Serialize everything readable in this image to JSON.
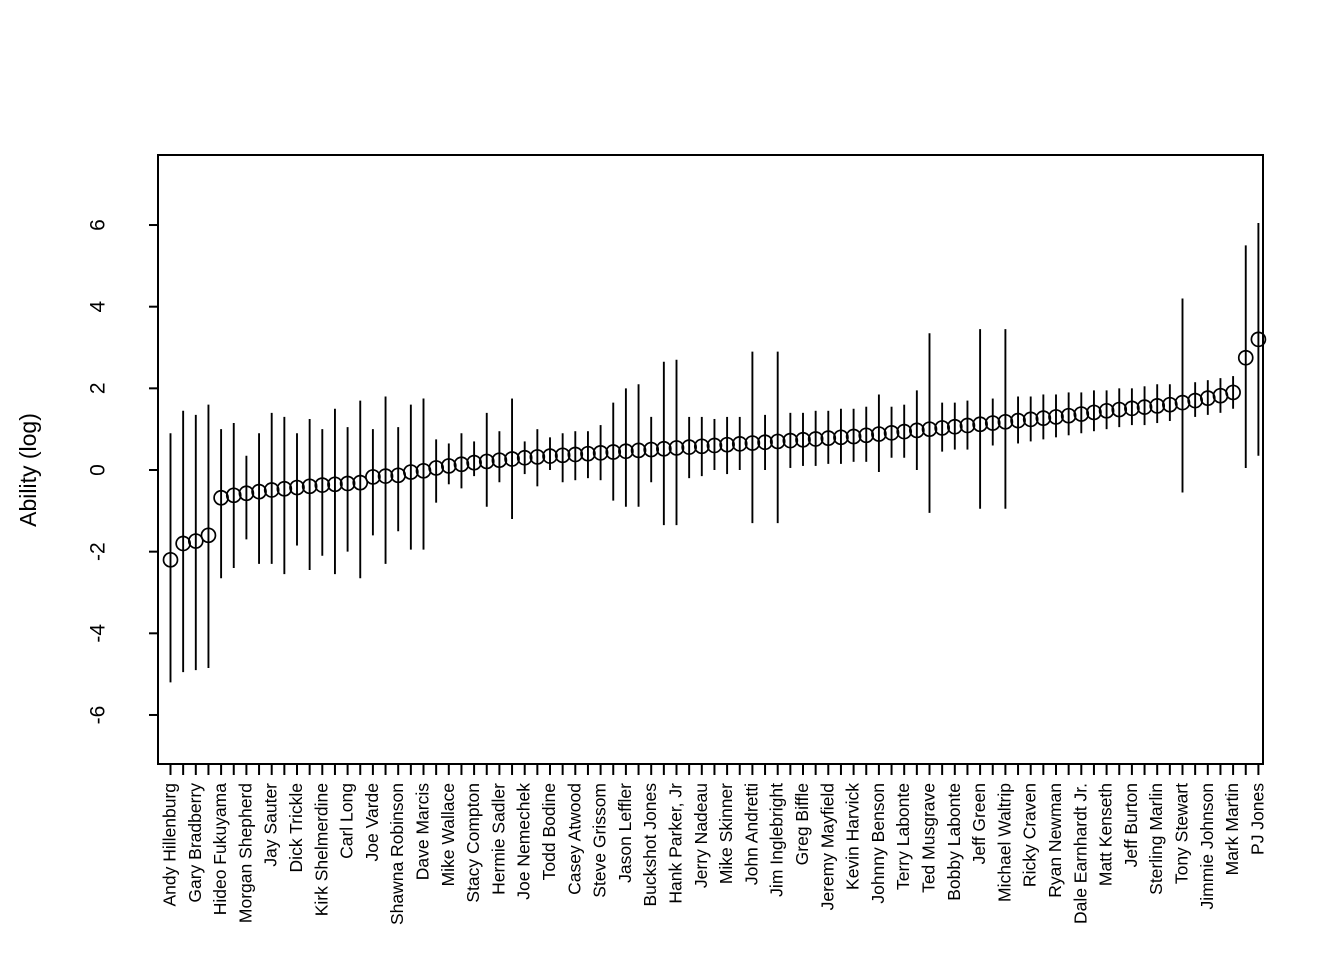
{
  "chart_data": {
    "type": "scatter",
    "title": "",
    "xlabel": "",
    "ylabel": "Ability (log)",
    "ylim": [
      -7.2,
      7.7
    ],
    "grid": false,
    "legend": null,
    "marker": "open-circle",
    "error_bars": "vertical-line-no-caps",
    "colors": {
      "foreground": "#000000",
      "background": "#ffffff"
    },
    "y_ticks": {
      "values": [
        6,
        4,
        2,
        0,
        -2,
        -4,
        -6
      ],
      "labels": [
        "6",
        "4",
        "2",
        "0",
        "-2",
        "-4",
        "-6"
      ],
      "rotated": true
    },
    "x_labels_note": "87 ticks; every other tick (odd positions) carries a driver name label, rotated 90 degrees",
    "categories": [
      "Andy Hillenburg",
      "Gary Bradberry",
      "Hideo Fukuyama",
      "Morgan Shepherd",
      "Jay Sauter",
      "Dick Trickle",
      "Kirk Shelmerdine",
      "Carl Long",
      "Joe Varde",
      "Shawna Robinson",
      "Dave Marcis",
      "Mike Wallace",
      "Stacy Compton",
      "Hermie Sadler",
      "Joe Nemechek",
      "Todd Bodine",
      "Casey Atwood",
      "Steve Grissom",
      "Jason Leffler",
      "Buckshot Jones",
      "Hank Parker, Jr",
      "Jerry Nadeau",
      "Mike Skinner",
      "John Andretti",
      "Jim Inglebright",
      "Greg Biffle",
      "Jeremy Mayfield",
      "Kevin Harvick",
      "Johnny Benson",
      "Terry Labonte",
      "Ted Musgrave",
      "Bobby Labonte",
      "Jeff Green",
      "Michael Waltrip",
      "Ricky Craven",
      "Ryan Newman",
      "Dale Earnhardt Jr.",
      "Matt Kenseth",
      "Jeff Burton",
      "Sterling Marlin",
      "Tony Stewart",
      "Jimmie Johnson",
      "Mark Martin",
      "PJ Jones"
    ],
    "points": [
      {
        "label": "Andy Hillenburg",
        "est": -2.2,
        "lo": -5.2,
        "hi": 0.9
      },
      {
        "label": "",
        "est": -1.8,
        "lo": -4.95,
        "hi": 1.45
      },
      {
        "label": "Gary Bradberry",
        "est": -1.74,
        "lo": -4.9,
        "hi": 1.35
      },
      {
        "label": "",
        "est": -1.6,
        "lo": -4.85,
        "hi": 1.6
      },
      {
        "label": "Hideo Fukuyama",
        "est": -0.68,
        "lo": -2.65,
        "hi": 1.0
      },
      {
        "label": "",
        "est": -0.62,
        "lo": -2.4,
        "hi": 1.15
      },
      {
        "label": "Morgan Shepherd",
        "est": -0.57,
        "lo": -1.7,
        "hi": 0.35
      },
      {
        "label": "",
        "est": -0.53,
        "lo": -2.3,
        "hi": 0.9
      },
      {
        "label": "Jay Sauter",
        "est": -0.49,
        "lo": -2.3,
        "hi": 1.4
      },
      {
        "label": "",
        "est": -0.46,
        "lo": -2.55,
        "hi": 1.3
      },
      {
        "label": "Dick Trickle",
        "est": -0.43,
        "lo": -1.85,
        "hi": 0.9
      },
      {
        "label": "",
        "est": -0.4,
        "lo": -2.45,
        "hi": 1.25
      },
      {
        "label": "Kirk Shelmerdine",
        "est": -0.37,
        "lo": -2.1,
        "hi": 1.0
      },
      {
        "label": "",
        "est": -0.35,
        "lo": -2.55,
        "hi": 1.5
      },
      {
        "label": "Carl Long",
        "est": -0.33,
        "lo": -2.0,
        "hi": 1.05
      },
      {
        "label": "",
        "est": -0.31,
        "lo": -2.65,
        "hi": 1.7
      },
      {
        "label": "Joe Varde",
        "est": -0.17,
        "lo": -1.6,
        "hi": 1.0
      },
      {
        "label": "",
        "est": -0.15,
        "lo": -2.3,
        "hi": 1.8
      },
      {
        "label": "Shawna Robinson",
        "est": -0.13,
        "lo": -1.5,
        "hi": 1.05
      },
      {
        "label": "",
        "est": -0.05,
        "lo": -1.95,
        "hi": 1.6
      },
      {
        "label": "Dave Marcis",
        "est": -0.02,
        "lo": -1.95,
        "hi": 1.75
      },
      {
        "label": "",
        "est": 0.05,
        "lo": -0.8,
        "hi": 0.75
      },
      {
        "label": "Mike Wallace",
        "est": 0.1,
        "lo": -0.35,
        "hi": 0.65
      },
      {
        "label": "",
        "est": 0.14,
        "lo": -0.45,
        "hi": 0.9
      },
      {
        "label": "Stacy Compton",
        "est": 0.18,
        "lo": -0.15,
        "hi": 0.7
      },
      {
        "label": "",
        "est": 0.21,
        "lo": -0.9,
        "hi": 1.4
      },
      {
        "label": "Hermie Sadler",
        "est": 0.24,
        "lo": -0.3,
        "hi": 0.95
      },
      {
        "label": "",
        "est": 0.27,
        "lo": -1.2,
        "hi": 1.75
      },
      {
        "label": "Joe Nemechek",
        "est": 0.3,
        "lo": -0.1,
        "hi": 0.7
      },
      {
        "label": "",
        "est": 0.32,
        "lo": -0.4,
        "hi": 1.0
      },
      {
        "label": "Todd Bodine",
        "est": 0.34,
        "lo": 0.0,
        "hi": 0.8
      },
      {
        "label": "",
        "est": 0.36,
        "lo": -0.3,
        "hi": 0.9
      },
      {
        "label": "Casey Atwood",
        "est": 0.38,
        "lo": -0.25,
        "hi": 0.95
      },
      {
        "label": "",
        "est": 0.4,
        "lo": -0.2,
        "hi": 0.95
      },
      {
        "label": "Steve Grissom",
        "est": 0.42,
        "lo": -0.25,
        "hi": 1.1
      },
      {
        "label": "",
        "est": 0.44,
        "lo": -0.75,
        "hi": 1.65
      },
      {
        "label": "Jason Leffler",
        "est": 0.46,
        "lo": -0.9,
        "hi": 2.0
      },
      {
        "label": "",
        "est": 0.48,
        "lo": -0.9,
        "hi": 2.1
      },
      {
        "label": "Buckshot Jones",
        "est": 0.5,
        "lo": -0.3,
        "hi": 1.3
      },
      {
        "label": "",
        "est": 0.52,
        "lo": -1.35,
        "hi": 2.65
      },
      {
        "label": "Hank Parker, Jr",
        "est": 0.54,
        "lo": -1.35,
        "hi": 2.7
      },
      {
        "label": "",
        "est": 0.56,
        "lo": -0.2,
        "hi": 1.3
      },
      {
        "label": "Jerry Nadeau",
        "est": 0.58,
        "lo": -0.15,
        "hi": 1.3
      },
      {
        "label": "",
        "est": 0.6,
        "lo": 0.0,
        "hi": 1.25
      },
      {
        "label": "Mike Skinner",
        "est": 0.62,
        "lo": -0.1,
        "hi": 1.3
      },
      {
        "label": "",
        "est": 0.64,
        "lo": 0.0,
        "hi": 1.3
      },
      {
        "label": "John Andretti",
        "est": 0.66,
        "lo": -1.3,
        "hi": 2.9
      },
      {
        "label": "",
        "est": 0.68,
        "lo": 0.0,
        "hi": 1.35
      },
      {
        "label": "Jim Inglebright",
        "est": 0.7,
        "lo": -1.3,
        "hi": 2.9
      },
      {
        "label": "",
        "est": 0.72,
        "lo": 0.05,
        "hi": 1.4
      },
      {
        "label": "Greg Biffle",
        "est": 0.74,
        "lo": 0.1,
        "hi": 1.4
      },
      {
        "label": "",
        "est": 0.76,
        "lo": 0.1,
        "hi": 1.45
      },
      {
        "label": "Jeremy Mayfield",
        "est": 0.78,
        "lo": 0.15,
        "hi": 1.45
      },
      {
        "label": "",
        "est": 0.8,
        "lo": 0.15,
        "hi": 1.5
      },
      {
        "label": "Kevin Harvick",
        "est": 0.82,
        "lo": 0.2,
        "hi": 1.5
      },
      {
        "label": "",
        "est": 0.85,
        "lo": 0.2,
        "hi": 1.55
      },
      {
        "label": "Johnny Benson",
        "est": 0.88,
        "lo": -0.05,
        "hi": 1.85
      },
      {
        "label": "",
        "est": 0.91,
        "lo": 0.3,
        "hi": 1.55
      },
      {
        "label": "Terry Labonte",
        "est": 0.94,
        "lo": 0.3,
        "hi": 1.6
      },
      {
        "label": "",
        "est": 0.97,
        "lo": 0.0,
        "hi": 1.95
      },
      {
        "label": "Ted Musgrave",
        "est": 1.0,
        "lo": -1.05,
        "hi": 3.35
      },
      {
        "label": "",
        "est": 1.03,
        "lo": 0.45,
        "hi": 1.65
      },
      {
        "label": "Bobby Labonte",
        "est": 1.06,
        "lo": 0.5,
        "hi": 1.65
      },
      {
        "label": "",
        "est": 1.09,
        "lo": 0.5,
        "hi": 1.7
      },
      {
        "label": "Jeff Green",
        "est": 1.12,
        "lo": -0.95,
        "hi": 3.45
      },
      {
        "label": "",
        "est": 1.15,
        "lo": 0.6,
        "hi": 1.75
      },
      {
        "label": "Michael Waltrip",
        "est": 1.18,
        "lo": -0.95,
        "hi": 3.45
      },
      {
        "label": "",
        "est": 1.21,
        "lo": 0.65,
        "hi": 1.8
      },
      {
        "label": "Ricky Craven",
        "est": 1.24,
        "lo": 0.7,
        "hi": 1.8
      },
      {
        "label": "",
        "est": 1.27,
        "lo": 0.75,
        "hi": 1.85
      },
      {
        "label": "Ryan Newman",
        "est": 1.3,
        "lo": 0.8,
        "hi": 1.85
      },
      {
        "label": "",
        "est": 1.33,
        "lo": 0.85,
        "hi": 1.9
      },
      {
        "label": "Dale Earnhardt Jr.",
        "est": 1.37,
        "lo": 0.9,
        "hi": 1.9
      },
      {
        "label": "",
        "est": 1.41,
        "lo": 0.95,
        "hi": 1.95
      },
      {
        "label": "Matt Kenseth",
        "est": 1.45,
        "lo": 1.0,
        "hi": 1.95
      },
      {
        "label": "",
        "est": 1.48,
        "lo": 1.05,
        "hi": 2.0
      },
      {
        "label": "Jeff Burton",
        "est": 1.51,
        "lo": 1.1,
        "hi": 2.0
      },
      {
        "label": "",
        "est": 1.54,
        "lo": 1.1,
        "hi": 2.05
      },
      {
        "label": "Sterling Marlin",
        "est": 1.57,
        "lo": 1.15,
        "hi": 2.1
      },
      {
        "label": "",
        "est": 1.6,
        "lo": 1.2,
        "hi": 2.1
      },
      {
        "label": "Tony Stewart",
        "est": 1.65,
        "lo": -0.55,
        "hi": 4.2
      },
      {
        "label": "",
        "est": 1.7,
        "lo": 1.3,
        "hi": 2.15
      },
      {
        "label": "Jimmie Johnson",
        "est": 1.76,
        "lo": 1.35,
        "hi": 2.2
      },
      {
        "label": "",
        "est": 1.82,
        "lo": 1.4,
        "hi": 2.25
      },
      {
        "label": "Mark Martin",
        "est": 1.9,
        "lo": 1.5,
        "hi": 2.3
      },
      {
        "label": "",
        "est": 2.75,
        "lo": 0.05,
        "hi": 5.5
      },
      {
        "label": "PJ Jones",
        "est": 3.2,
        "lo": 0.35,
        "hi": 6.05
      }
    ]
  }
}
